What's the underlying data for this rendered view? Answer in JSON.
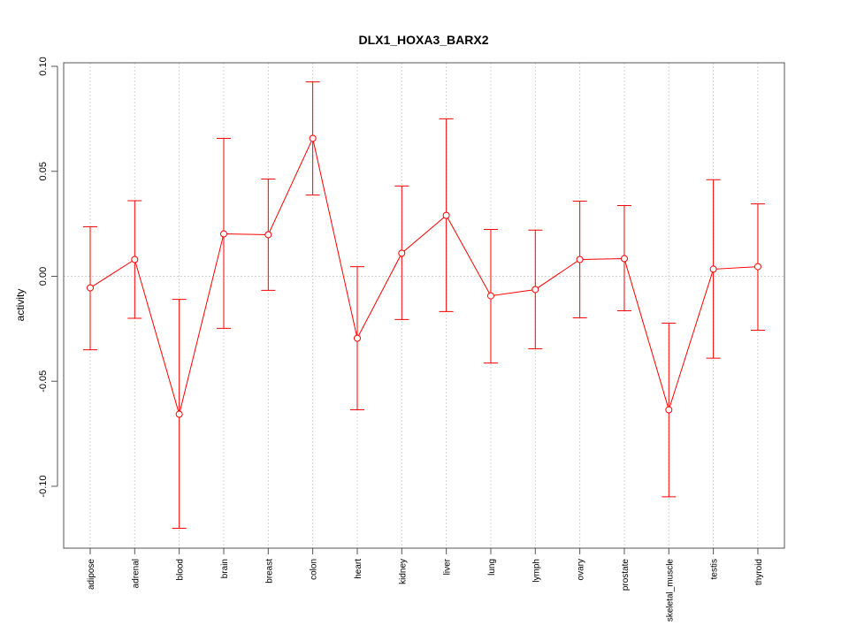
{
  "chart_data": {
    "type": "line",
    "title": "DLX1_HOXA3_BARX2",
    "xlabel": "",
    "ylabel": "activity",
    "ylim": [
      -0.13,
      0.1
    ],
    "grid": true,
    "yticks": [
      "-0.10",
      "-0.05",
      "0.00",
      "0.05",
      "0.10"
    ],
    "ytick_values": [
      -0.1,
      -0.05,
      0.0,
      0.05,
      0.1
    ],
    "categories": [
      "adipose",
      "adrenal",
      "blood",
      "brain",
      "breast",
      "colon",
      "heart",
      "kidney",
      "liver",
      "lung",
      "lymph",
      "ovary",
      "prostate",
      "skeletal_muscle",
      "testis",
      "thyroid"
    ],
    "values": [
      -0.0055,
      0.008,
      -0.0657,
      0.0202,
      0.0198,
      0.0657,
      -0.0295,
      0.011,
      0.029,
      -0.0093,
      -0.0063,
      0.008,
      0.0084,
      -0.0636,
      0.0034,
      0.0046
    ],
    "upper": [
      0.0236,
      0.036,
      -0.011,
      0.0657,
      0.0463,
      0.0926,
      0.0046,
      0.043,
      0.075,
      0.0223,
      0.022,
      0.0358,
      0.0337,
      -0.0223,
      0.046,
      0.0345
    ],
    "lower": [
      -0.035,
      -0.02,
      -0.12,
      -0.0248,
      -0.0067,
      0.0387,
      -0.0636,
      -0.0206,
      -0.0168,
      -0.0413,
      -0.0345,
      -0.0198,
      -0.0164,
      -0.105,
      -0.039,
      -0.0257
    ],
    "color": "#ff0000"
  }
}
